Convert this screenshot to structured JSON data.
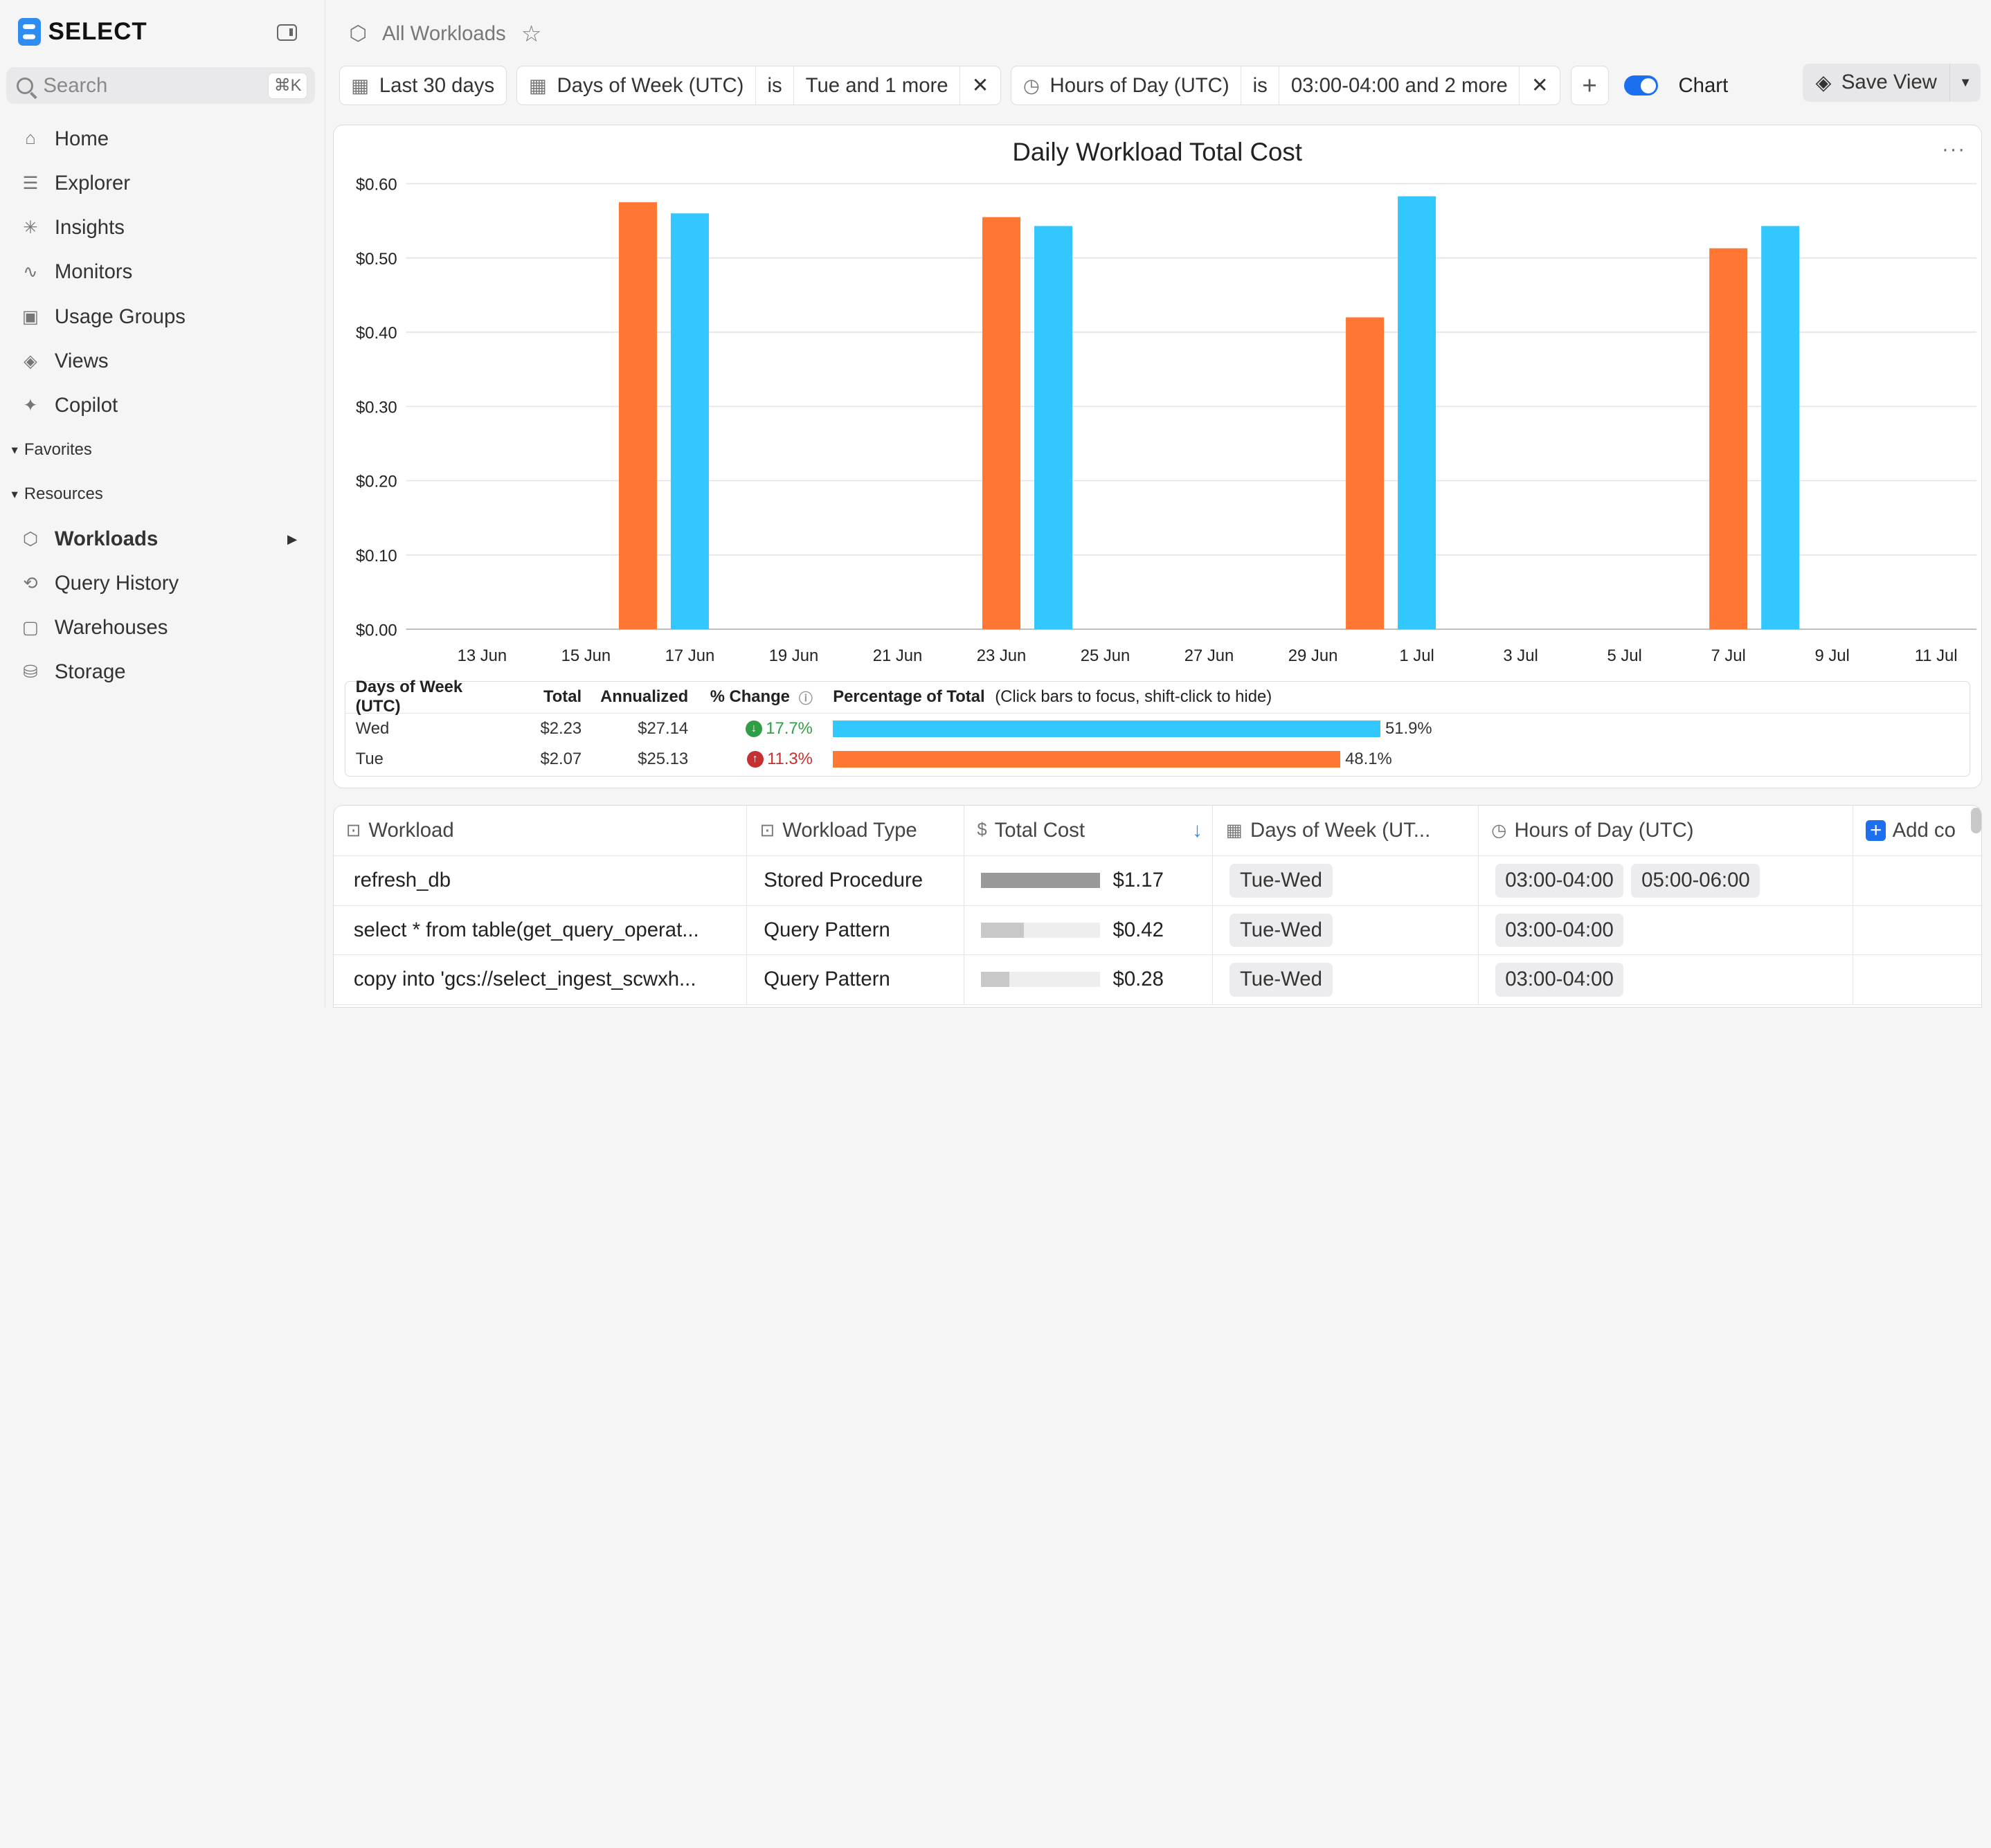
{
  "brand": "SELECT",
  "search": {
    "placeholder": "Search",
    "shortcut": "⌘K"
  },
  "nav": [
    "Home",
    "Explorer",
    "Insights",
    "Monitors",
    "Usage Groups",
    "Views",
    "Copilot"
  ],
  "sections": {
    "favorites": "Favorites",
    "resources": "Resources"
  },
  "resources": [
    "Workloads",
    "Query History",
    "Warehouses",
    "Storage"
  ],
  "breadcrumb": "All Workloads",
  "filters": {
    "range": "Last 30 days",
    "dow_field": "Days of Week (UTC)",
    "dow_op": "is",
    "dow_val": "Tue and 1 more",
    "hod_field": "Hours of Day (UTC)",
    "hod_op": "is",
    "hod_val": "03:00-04:00 and 2 more"
  },
  "chart_toggle": "Chart",
  "save_view": "Save View",
  "chart_data": {
    "type": "bar",
    "title": "Daily Workload Total Cost",
    "ylim": [
      0,
      0.6
    ],
    "yticks": [
      "$0.00",
      "$0.10",
      "$0.20",
      "$0.30",
      "$0.40",
      "$0.50",
      "$0.60"
    ],
    "xticks": [
      "13 Jun",
      "15 Jun",
      "17 Jun",
      "19 Jun",
      "21 Jun",
      "23 Jun",
      "25 Jun",
      "27 Jun",
      "29 Jun",
      "1 Jul",
      "3 Jul",
      "5 Jul",
      "7 Jul",
      "9 Jul",
      "11 Jul"
    ],
    "series": [
      {
        "name": "Tue",
        "color": "#ff7733",
        "points": [
          {
            "day": 4,
            "value": 0.575
          },
          {
            "day": 11,
            "value": 0.555
          },
          {
            "day": 18,
            "value": 0.42
          },
          {
            "day": 25,
            "value": 0.513
          }
        ]
      },
      {
        "name": "Wed",
        "color": "#33c7ff",
        "points": [
          {
            "day": 5,
            "value": 0.56
          },
          {
            "day": 12,
            "value": 0.543
          },
          {
            "day": 19,
            "value": 0.583
          },
          {
            "day": 26,
            "value": 0.543
          }
        ]
      }
    ]
  },
  "legend": {
    "headers": [
      "Days of Week (UTC)",
      "Total",
      "Annualized",
      "% Change",
      "Percentage of Total"
    ],
    "hint": "(Click bars to focus, shift-click to hide)",
    "rows": [
      {
        "name": "Wed",
        "total": "$2.23",
        "annualized": "$27.14",
        "change": "17.7%",
        "pct": "51.9%",
        "pct_value": 51.9,
        "color": "#33c7ff",
        "dir": "down"
      },
      {
        "name": "Tue",
        "total": "$2.07",
        "annualized": "$25.13",
        "change": "11.3%",
        "pct": "48.1%",
        "pct_value": 48.1,
        "color": "#ff7733",
        "dir": "up"
      }
    ]
  },
  "table": {
    "headers": [
      "Workload",
      "Workload Type",
      "Total Cost",
      "Days of Week (UT...",
      "Hours of Day (UTC)",
      "Add co"
    ],
    "rows": [
      {
        "workload": "refresh_db",
        "type": "Stored Procedure",
        "cost": "$1.17",
        "cost_frac": 1.0,
        "days": "Tue-Wed",
        "hours": [
          "03:00-04:00",
          "05:00-06:00"
        ]
      },
      {
        "workload": "select * from table(get_query_operat...",
        "type": "Query Pattern",
        "cost": "$0.42",
        "cost_frac": 0.36,
        "days": "Tue-Wed",
        "hours": [
          "03:00-04:00"
        ]
      },
      {
        "workload": "copy into 'gcs://select_ingest_scwxh...",
        "type": "Query Pattern",
        "cost": "$0.28",
        "cost_frac": 0.24,
        "days": "Tue-Wed",
        "hours": [
          "03:00-04:00"
        ]
      }
    ]
  }
}
